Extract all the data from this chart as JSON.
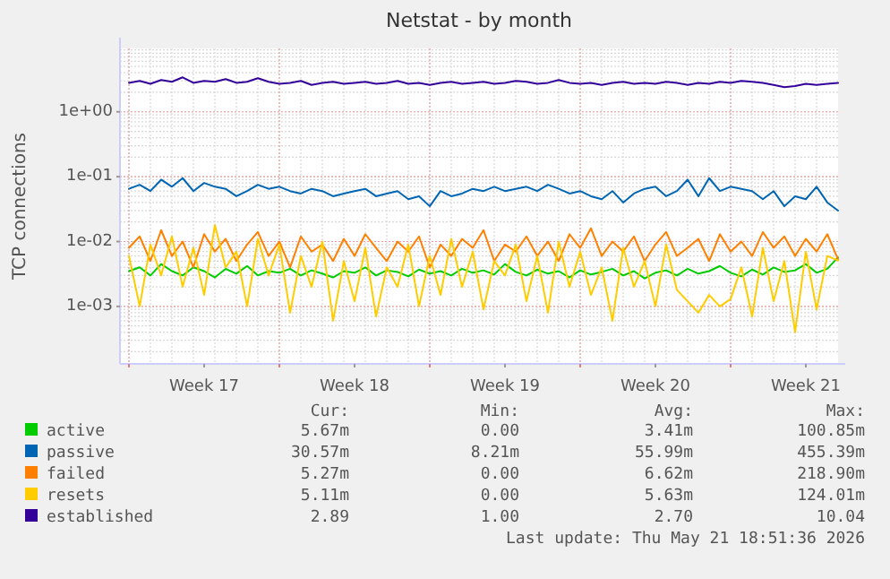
{
  "chart_data": {
    "type": "line",
    "title": "Netstat - by month",
    "ylabel": "TCP connections",
    "log": "y",
    "grid": true,
    "legend": "bottom",
    "line_style": "solid",
    "marker": "none",
    "ylim": [
      0.00013,
      9.5
    ],
    "yticks": [
      {
        "value": 0.001,
        "label": "1e-03"
      },
      {
        "value": 0.01,
        "label": "1e-02"
      },
      {
        "value": 0.1,
        "label": "1e-01"
      },
      {
        "value": 1,
        "label": "1e+00"
      }
    ],
    "xlim": [
      "2026-04-19T14:00",
      "2026-05-23T00:00"
    ],
    "xticks": [
      {
        "value": "2026-04-20T00:00",
        "label": null
      },
      {
        "value": "2026-04-23T12:00",
        "label": "Week 17"
      },
      {
        "value": "2026-04-27T00:00",
        "label": null
      },
      {
        "value": "2026-04-30T12:00",
        "label": "Week 18"
      },
      {
        "value": "2026-05-04T00:00",
        "label": null
      },
      {
        "value": "2026-05-07T12:00",
        "label": "Week 19"
      },
      {
        "value": "2026-05-11T00:00",
        "label": null
      },
      {
        "value": "2026-05-14T12:00",
        "label": "Week 20"
      },
      {
        "value": "2026-05-18T00:00",
        "label": null
      },
      {
        "value": "2026-05-21T12:00",
        "label": "Week 21"
      }
    ],
    "x": [
      "2026-04-20T00:00",
      "2026-04-20T12:00",
      "2026-04-21T00:00",
      "2026-04-21T12:00",
      "2026-04-22T00:00",
      "2026-04-22T12:00",
      "2026-04-23T00:00",
      "2026-04-23T12:00",
      "2026-04-24T00:00",
      "2026-04-24T12:00",
      "2026-04-25T00:00",
      "2026-04-25T12:00",
      "2026-04-26T00:00",
      "2026-04-26T12:00",
      "2026-04-27T00:00",
      "2026-04-27T12:00",
      "2026-04-28T00:00",
      "2026-04-28T12:00",
      "2026-04-29T00:00",
      "2026-04-29T12:00",
      "2026-04-30T00:00",
      "2026-04-30T12:00",
      "2026-05-01T00:00",
      "2026-05-01T12:00",
      "2026-05-02T00:00",
      "2026-05-02T12:00",
      "2026-05-03T00:00",
      "2026-05-03T12:00",
      "2026-05-04T00:00",
      "2026-05-04T12:00",
      "2026-05-05T00:00",
      "2026-05-05T12:00",
      "2026-05-06T00:00",
      "2026-05-06T12:00",
      "2026-05-07T00:00",
      "2026-05-07T12:00",
      "2026-05-08T00:00",
      "2026-05-08T12:00",
      "2026-05-09T00:00",
      "2026-05-09T12:00",
      "2026-05-10T00:00",
      "2026-05-10T12:00",
      "2026-05-11T00:00",
      "2026-05-11T12:00",
      "2026-05-12T00:00",
      "2026-05-12T12:00",
      "2026-05-13T00:00",
      "2026-05-13T12:00",
      "2026-05-14T00:00",
      "2026-05-14T12:00",
      "2026-05-15T00:00",
      "2026-05-15T12:00",
      "2026-05-16T00:00",
      "2026-05-16T12:00",
      "2026-05-17T00:00",
      "2026-05-17T12:00",
      "2026-05-18T00:00",
      "2026-05-18T12:00",
      "2026-05-19T00:00",
      "2026-05-19T12:00",
      "2026-05-20T00:00",
      "2026-05-20T12:00",
      "2026-05-21T00:00",
      "2026-05-21T12:00",
      "2026-05-22T00:00",
      "2026-05-22T12:00",
      "2026-05-23T00:00"
    ],
    "series": [
      {
        "name": "active",
        "color": "#00cc00",
        "values": [
          0.0035,
          0.004,
          0.003,
          0.0045,
          0.0035,
          0.003,
          0.004,
          0.0035,
          0.0028,
          0.0038,
          0.0032,
          0.0042,
          0.003,
          0.0035,
          0.0033,
          0.0038,
          0.003,
          0.0036,
          0.0032,
          0.0028,
          0.0035,
          0.0033,
          0.004,
          0.003,
          0.0036,
          0.0034,
          0.0029,
          0.0037,
          0.0032,
          0.0035,
          0.003,
          0.0038,
          0.0033,
          0.0036,
          0.0031,
          0.0045,
          0.0034,
          0.003,
          0.0037,
          0.0032,
          0.0035,
          0.0028,
          0.0036,
          0.0031,
          0.0034,
          0.0038,
          0.003,
          0.0035,
          0.0027,
          0.0033,
          0.0036,
          0.003,
          0.0038,
          0.0032,
          0.0035,
          0.0042,
          0.0033,
          0.0029,
          0.0037,
          0.0031,
          0.004,
          0.0034,
          0.0036,
          0.0045,
          0.0033,
          0.0038,
          0.0057
        ]
      },
      {
        "name": "passive",
        "color": "#0066b3",
        "values": [
          0.065,
          0.075,
          0.06,
          0.09,
          0.07,
          0.095,
          0.06,
          0.08,
          0.07,
          0.065,
          0.05,
          0.06,
          0.075,
          0.065,
          0.07,
          0.06,
          0.055,
          0.065,
          0.06,
          0.05,
          0.055,
          0.06,
          0.065,
          0.05,
          0.055,
          0.06,
          0.045,
          0.05,
          0.035,
          0.06,
          0.05,
          0.055,
          0.065,
          0.06,
          0.07,
          0.06,
          0.065,
          0.07,
          0.06,
          0.075,
          0.065,
          0.055,
          0.06,
          0.05,
          0.045,
          0.06,
          0.04,
          0.055,
          0.065,
          0.07,
          0.05,
          0.06,
          0.09,
          0.05,
          0.095,
          0.06,
          0.07,
          0.065,
          0.06,
          0.045,
          0.06,
          0.035,
          0.05,
          0.045,
          0.07,
          0.04,
          0.03
        ]
      },
      {
        "name": "failed",
        "color": "#ff8000",
        "values": [
          0.008,
          0.012,
          0.005,
          0.015,
          0.006,
          0.01,
          0.004,
          0.013,
          0.007,
          0.011,
          0.005,
          0.009,
          0.014,
          0.006,
          0.01,
          0.004,
          0.012,
          0.007,
          0.009,
          0.005,
          0.011,
          0.006,
          0.013,
          0.008,
          0.005,
          0.01,
          0.007,
          0.012,
          0.004,
          0.009,
          0.006,
          0.011,
          0.008,
          0.015,
          0.005,
          0.009,
          0.007,
          0.012,
          0.006,
          0.01,
          0.005,
          0.013,
          0.008,
          0.016,
          0.006,
          0.01,
          0.007,
          0.012,
          0.005,
          0.009,
          0.014,
          0.006,
          0.008,
          0.011,
          0.005,
          0.013,
          0.007,
          0.01,
          0.006,
          0.014,
          0.008,
          0.012,
          0.006,
          0.011,
          0.007,
          0.013,
          0.0053
        ]
      },
      {
        "name": "resets",
        "color": "#ffcc00",
        "values": [
          0.006,
          0.001,
          0.009,
          0.003,
          0.012,
          0.002,
          0.008,
          0.0015,
          0.018,
          0.004,
          0.007,
          0.001,
          0.011,
          0.003,
          0.009,
          0.0008,
          0.006,
          0.002,
          0.01,
          0.0006,
          0.005,
          0.0012,
          0.008,
          0.0007,
          0.004,
          0.002,
          0.009,
          0.001,
          0.006,
          0.0015,
          0.011,
          0.002,
          0.007,
          0.0009,
          0.005,
          0.003,
          0.009,
          0.0012,
          0.006,
          0.0008,
          0.01,
          0.002,
          0.007,
          0.0015,
          0.004,
          0.0006,
          0.008,
          0.002,
          0.005,
          0.001,
          0.009,
          0.0018,
          0.0012,
          0.0008,
          0.0015,
          0.001,
          0.0013,
          0.004,
          0.0007,
          0.008,
          0.0012,
          0.005,
          0.0004,
          0.007,
          0.0009,
          0.006,
          0.0051
        ]
      },
      {
        "name": "established",
        "color": "#330099",
        "values": [
          2.8,
          3.0,
          2.7,
          3.1,
          2.9,
          3.4,
          2.8,
          3.0,
          2.9,
          3.2,
          2.8,
          2.9,
          3.3,
          2.9,
          2.7,
          2.8,
          3.0,
          2.6,
          2.8,
          2.9,
          2.7,
          2.8,
          2.9,
          2.7,
          2.8,
          3.0,
          2.7,
          2.8,
          2.6,
          2.8,
          2.9,
          2.7,
          2.8,
          2.9,
          2.7,
          2.8,
          3.0,
          2.9,
          2.7,
          2.8,
          3.1,
          2.8,
          2.7,
          2.8,
          2.6,
          2.8,
          2.9,
          2.7,
          2.8,
          2.7,
          2.9,
          2.8,
          2.6,
          2.8,
          2.7,
          2.9,
          2.8,
          3.0,
          2.9,
          2.8,
          2.6,
          2.4,
          2.5,
          2.7,
          2.6,
          2.7,
          2.8
        ]
      }
    ],
    "annotations": [
      "Cur:",
      "Min:",
      "Avg:",
      "Max:",
      "5.67m",
      "0.00",
      "3.41m",
      "100.85m",
      "30.57m",
      "8.21m",
      "55.99m",
      "455.39m",
      "5.27m",
      "0.00",
      "6.62m",
      "218.90m",
      "5.11m",
      "0.00",
      "5.63m",
      "124.01m",
      "2.89",
      "1.00",
      "2.70",
      "10.04",
      "Last update: Thu May 21 18:51:36 2026"
    ]
  }
}
